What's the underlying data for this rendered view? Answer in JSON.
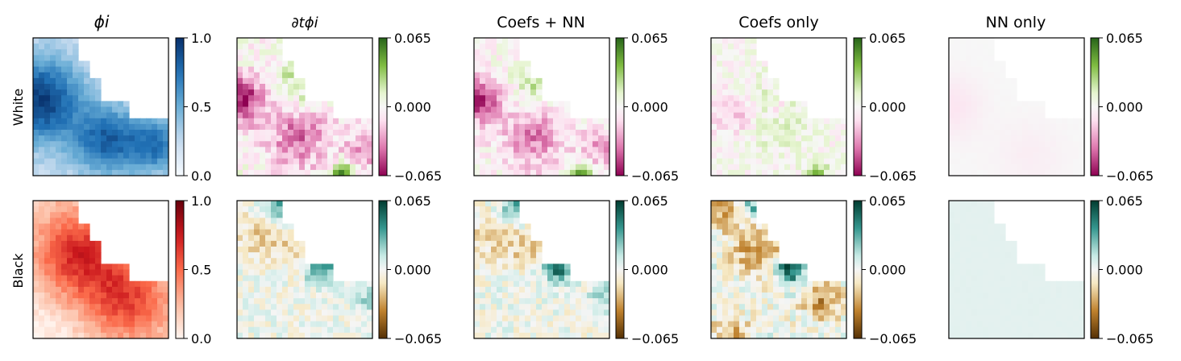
{
  "figure": {
    "column_titles": [
      "ϕi",
      "∂tϕi",
      "Coefs + NN",
      "Coefs only",
      "NN only"
    ],
    "row_labels": [
      "White",
      "Black"
    ]
  },
  "chart_data": [
    {
      "type": "heatmap",
      "title": "ϕi",
      "row_label": "White",
      "colormap": "Blues",
      "colorbar": {
        "ticks": [
          "0.0",
          "0.5",
          "1.0"
        ],
        "range": [
          0.0,
          1.0
        ]
      },
      "pattern": "phi",
      "intensity": 1.0,
      "x_ticks": false,
      "y_ticks": false
    },
    {
      "type": "heatmap",
      "title": "∂tϕi",
      "row_label": "White",
      "colormap": "PiYG",
      "colorbar": {
        "ticks": [
          "−0.065",
          "0.000",
          "0.065"
        ],
        "range": [
          -0.065,
          0.065
        ]
      },
      "pattern": "dt_white",
      "intensity": 1.0
    },
    {
      "type": "heatmap",
      "title": "Coefs + NN",
      "row_label": "White",
      "colormap": "PiYG",
      "colorbar": {
        "ticks": [
          "−0.065",
          "0.000",
          "0.065"
        ],
        "range": [
          -0.065,
          0.065
        ]
      },
      "pattern": "dt_white",
      "intensity": 0.9
    },
    {
      "type": "heatmap",
      "title": "Coefs only",
      "row_label": "White",
      "colormap": "PiYG",
      "colorbar": {
        "ticks": [
          "−0.065",
          "0.000",
          "0.065"
        ],
        "range": [
          -0.065,
          0.065
        ]
      },
      "pattern": "dt_white_coef",
      "intensity": 0.7
    },
    {
      "type": "heatmap",
      "title": "NN only",
      "row_label": "White",
      "colormap": "PiYG",
      "colorbar": {
        "ticks": [
          "−0.065",
          "0.000",
          "0.065"
        ],
        "range": [
          -0.065,
          0.065
        ]
      },
      "pattern": "nn_white",
      "intensity": 0.35
    },
    {
      "type": "heatmap",
      "row_label": "Black",
      "colormap": "Reds",
      "colorbar": {
        "ticks": [
          "0.0",
          "0.5",
          "1.0"
        ],
        "range": [
          0.0,
          1.0
        ]
      },
      "pattern": "phi_black",
      "intensity": 1.0
    },
    {
      "type": "heatmap",
      "row_label": "Black",
      "colormap": "BrBG",
      "colorbar": {
        "ticks": [
          "−0.065",
          "0.000",
          "0.065"
        ],
        "range": [
          -0.065,
          0.065
        ]
      },
      "pattern": "dt_black",
      "intensity": 0.8
    },
    {
      "type": "heatmap",
      "row_label": "Black",
      "colormap": "BrBG",
      "colorbar": {
        "ticks": [
          "−0.065",
          "0.000",
          "0.065"
        ],
        "range": [
          -0.065,
          0.065
        ]
      },
      "pattern": "dt_black",
      "intensity": 0.9
    },
    {
      "type": "heatmap",
      "row_label": "Black",
      "colormap": "BrBG",
      "colorbar": {
        "ticks": [
          "−0.065",
          "0.000",
          "0.065"
        ],
        "range": [
          -0.065,
          0.065
        ]
      },
      "pattern": "dt_black_coef",
      "intensity": 1.0
    },
    {
      "type": "heatmap",
      "row_label": "Black",
      "colormap": "BrBG",
      "colorbar": {
        "ticks": [
          "−0.065",
          "0.000",
          "0.065"
        ],
        "range": [
          -0.065,
          0.065
        ]
      },
      "pattern": "nn_black",
      "intensity": 0.22
    }
  ]
}
